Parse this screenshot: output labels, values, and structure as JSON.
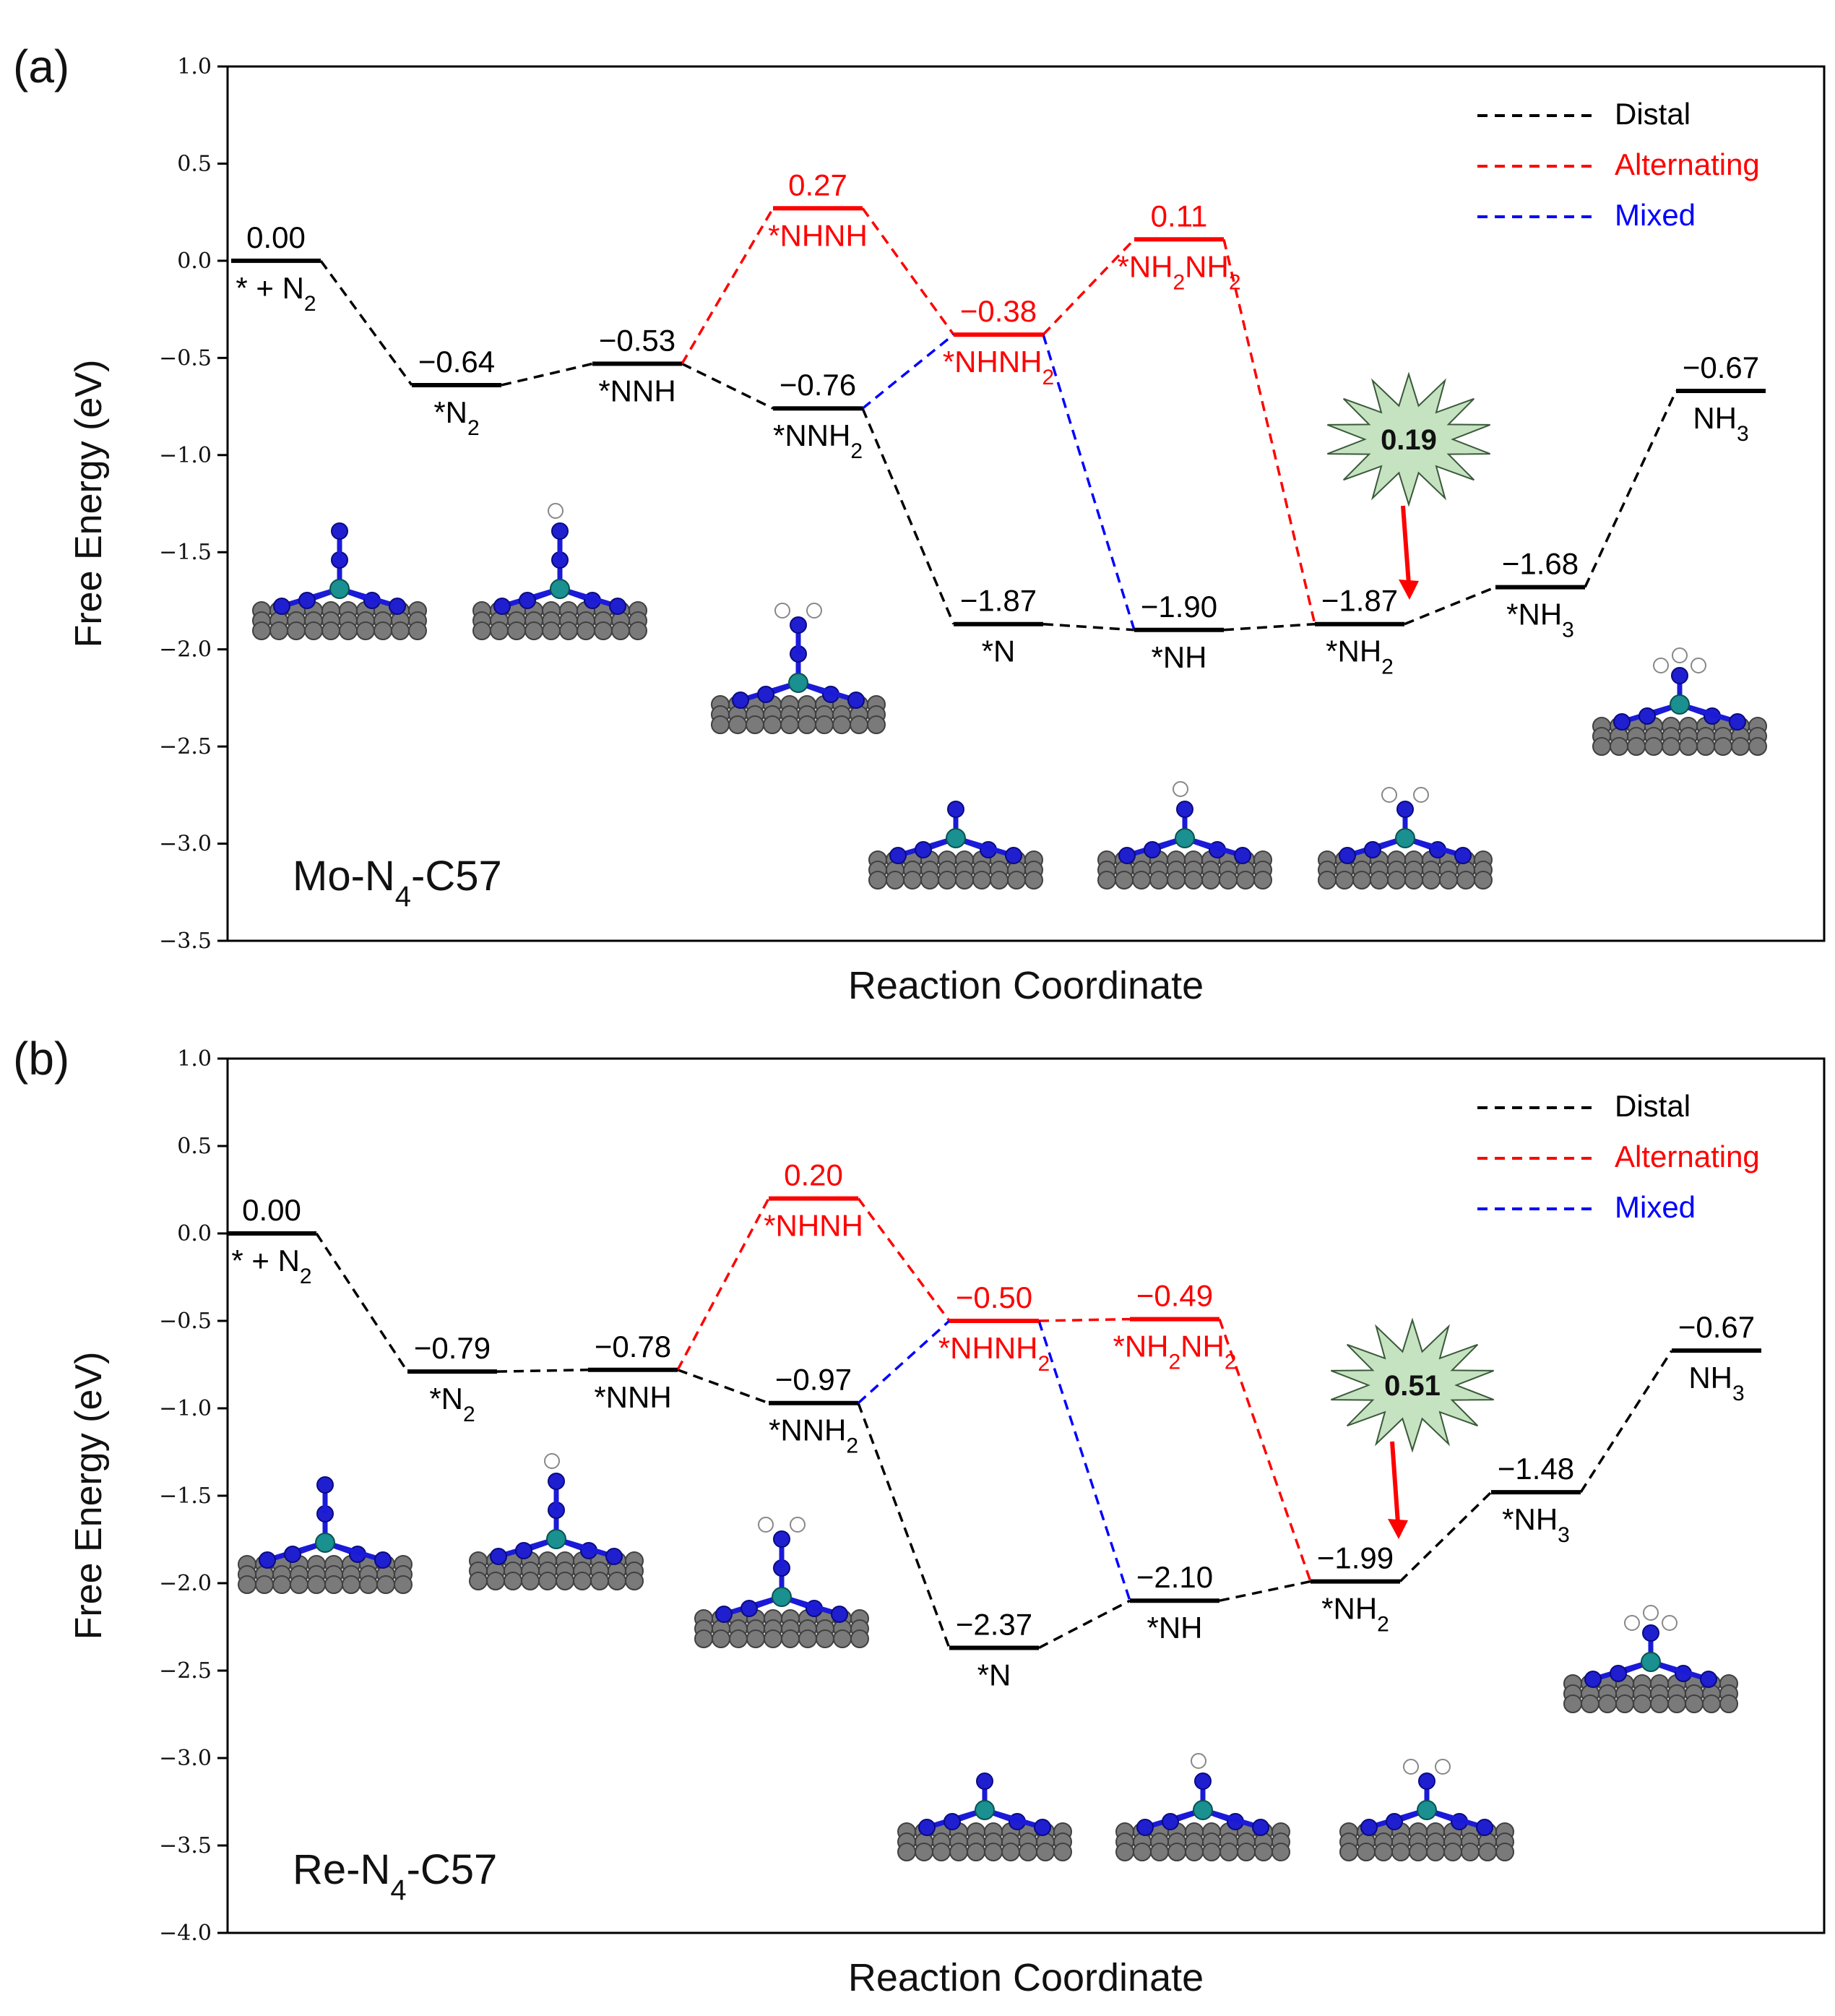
{
  "chart_data": [
    {
      "type": "line",
      "panel_label": "(a)",
      "system_label": {
        "main": "Mo-N",
        "sub": "4",
        "rest": "-C57"
      },
      "title": "",
      "xlabel": "Reaction Coordinate",
      "ylabel": "Free Energy (eV)",
      "ylim": [
        -3.5,
        1.0
      ],
      "yticks": [
        "1.0",
        "0.5",
        "0.0",
        "-0.5",
        "-1.0",
        "-1.5",
        "-2.0",
        "-2.5",
        "-3.0",
        "-3.5"
      ],
      "legend": [
        {
          "name": "Distal",
          "color": "#000000"
        },
        {
          "name": "Alternating",
          "color": "#ff0000"
        },
        {
          "name": "Mixed",
          "color": "#0000ff"
        }
      ],
      "levels": [
        {
          "id": "s0",
          "pos": 0,
          "value": 0.0,
          "value_label": "0.00",
          "state": "* + N",
          "state_sub": "2",
          "color": "#000000"
        },
        {
          "id": "s1",
          "pos": 1,
          "value": -0.64,
          "value_label": "−0.64",
          "state": "*N",
          "state_sub": "2",
          "color": "#000000"
        },
        {
          "id": "s2",
          "pos": 2,
          "value": -0.53,
          "value_label": "−0.53",
          "state": "*NNH",
          "state_sub": "",
          "color": "#000000"
        },
        {
          "id": "s3d",
          "pos": 3,
          "value": -0.76,
          "value_label": "−0.76",
          "state": "*NNH",
          "state_sub": "2",
          "color": "#000000"
        },
        {
          "id": "s3a",
          "pos": 3,
          "value": 0.27,
          "value_label": "0.27",
          "state": "*NHNH",
          "state_sub": "",
          "color": "#ff0000"
        },
        {
          "id": "s4d",
          "pos": 4,
          "value": -1.87,
          "value_label": "−1.87",
          "state": "*N",
          "state_sub": "",
          "color": "#000000"
        },
        {
          "id": "s4a",
          "pos": 4,
          "value": -0.38,
          "value_label": "−0.38",
          "state": "*NHNH",
          "state_sub": "2",
          "color": "#ff0000"
        },
        {
          "id": "s5d",
          "pos": 5,
          "value": -1.9,
          "value_label": "−1.90",
          "state": "*NH",
          "state_sub": "",
          "color": "#000000"
        },
        {
          "id": "s5a",
          "pos": 5,
          "value": 0.11,
          "value_label": "0.11",
          "state": "*NH2NH2",
          "state_sub": "",
          "color": "#ff0000"
        },
        {
          "id": "s6",
          "pos": 6,
          "value": -1.87,
          "value_label": "−1.87",
          "state": "*NH",
          "state_sub": "2",
          "color": "#000000"
        },
        {
          "id": "s7",
          "pos": 7,
          "value": -1.68,
          "value_label": "−1.68",
          "state": "*NH",
          "state_sub": "3",
          "color": "#000000"
        },
        {
          "id": "s8",
          "pos": 8,
          "value": -0.67,
          "value_label": "−0.67",
          "state": "NH",
          "state_sub": "3",
          "color": "#000000"
        }
      ],
      "connections": [
        {
          "from": "s0",
          "to": "s1",
          "path": "Distal"
        },
        {
          "from": "s1",
          "to": "s2",
          "path": "Distal"
        },
        {
          "from": "s2",
          "to": "s3d",
          "path": "Distal"
        },
        {
          "from": "s3d",
          "to": "s4d",
          "path": "Distal"
        },
        {
          "from": "s4d",
          "to": "s5d",
          "path": "Distal"
        },
        {
          "from": "s5d",
          "to": "s6",
          "path": "Distal"
        },
        {
          "from": "s6",
          "to": "s7",
          "path": "Distal"
        },
        {
          "from": "s7",
          "to": "s8",
          "path": "Distal"
        },
        {
          "from": "s2",
          "to": "s3a",
          "path": "Alternating"
        },
        {
          "from": "s3a",
          "to": "s4a",
          "path": "Alternating"
        },
        {
          "from": "s4a",
          "to": "s5a",
          "path": "Alternating"
        },
        {
          "from": "s5a",
          "to": "s6",
          "path": "Alternating"
        },
        {
          "from": "s3d",
          "to": "s4a",
          "path": "Mixed"
        },
        {
          "from": "s4a",
          "to": "s5d",
          "path": "Mixed"
        }
      ],
      "limiting_step": {
        "value_label": "0.19",
        "between": [
          "s6",
          "s7"
        ]
      }
    },
    {
      "type": "line",
      "panel_label": "(b)",
      "system_label": {
        "main": "Re-N",
        "sub": "4",
        "rest": "-C57"
      },
      "title": "",
      "xlabel": "Reaction Coordinate",
      "ylabel": "Free Energy (eV)",
      "ylim": [
        -4.0,
        1.0
      ],
      "yticks": [
        "1.0",
        "0.5",
        "0.0",
        "-0.5",
        "-1.0",
        "-1.5",
        "-2.0",
        "-2.5",
        "-3.0",
        "-3.5",
        "-4.0"
      ],
      "legend": [
        {
          "name": "Distal",
          "color": "#000000"
        },
        {
          "name": "Alternating",
          "color": "#ff0000"
        },
        {
          "name": "Mixed",
          "color": "#0000ff"
        }
      ],
      "levels": [
        {
          "id": "s0",
          "pos": 0,
          "value": 0.0,
          "value_label": "0.00",
          "state": "* + N",
          "state_sub": "2",
          "color": "#000000"
        },
        {
          "id": "s1",
          "pos": 1,
          "value": -0.79,
          "value_label": "−0.79",
          "state": "*N",
          "state_sub": "2",
          "color": "#000000"
        },
        {
          "id": "s2",
          "pos": 2,
          "value": -0.78,
          "value_label": "−0.78",
          "state": "*NNH",
          "state_sub": "",
          "color": "#000000"
        },
        {
          "id": "s3d",
          "pos": 3,
          "value": -0.97,
          "value_label": "−0.97",
          "state": "*NNH",
          "state_sub": "2",
          "color": "#000000"
        },
        {
          "id": "s3a",
          "pos": 3,
          "value": 0.2,
          "value_label": "0.20",
          "state": "*NHNH",
          "state_sub": "",
          "color": "#ff0000"
        },
        {
          "id": "s4d",
          "pos": 4,
          "value": -2.37,
          "value_label": "−2.37",
          "state": "*N",
          "state_sub": "",
          "color": "#000000"
        },
        {
          "id": "s4a",
          "pos": 4,
          "value": -0.5,
          "value_label": "−0.50",
          "state": "*NHNH",
          "state_sub": "2",
          "color": "#ff0000"
        },
        {
          "id": "s5d",
          "pos": 5,
          "value": -2.1,
          "value_label": "−2.10",
          "state": "*NH",
          "state_sub": "",
          "color": "#000000"
        },
        {
          "id": "s5a",
          "pos": 5,
          "value": -0.49,
          "value_label": "−0.49",
          "state": "*NH2NH2",
          "state_sub": "",
          "color": "#ff0000"
        },
        {
          "id": "s6",
          "pos": 6,
          "value": -1.99,
          "value_label": "−1.99",
          "state": "*NH",
          "state_sub": "2",
          "color": "#000000"
        },
        {
          "id": "s7",
          "pos": 7,
          "value": -1.48,
          "value_label": "−1.48",
          "state": "*NH",
          "state_sub": "3",
          "color": "#000000"
        },
        {
          "id": "s8",
          "pos": 8,
          "value": -0.67,
          "value_label": "−0.67",
          "state": "NH",
          "state_sub": "3",
          "color": "#000000"
        }
      ],
      "connections": [
        {
          "from": "s0",
          "to": "s1",
          "path": "Distal"
        },
        {
          "from": "s1",
          "to": "s2",
          "path": "Distal"
        },
        {
          "from": "s2",
          "to": "s3d",
          "path": "Distal"
        },
        {
          "from": "s3d",
          "to": "s4d",
          "path": "Distal"
        },
        {
          "from": "s4d",
          "to": "s5d",
          "path": "Distal"
        },
        {
          "from": "s5d",
          "to": "s6",
          "path": "Distal"
        },
        {
          "from": "s6",
          "to": "s7",
          "path": "Distal"
        },
        {
          "from": "s7",
          "to": "s8",
          "path": "Distal"
        },
        {
          "from": "s2",
          "to": "s3a",
          "path": "Alternating"
        },
        {
          "from": "s3a",
          "to": "s4a",
          "path": "Alternating"
        },
        {
          "from": "s4a",
          "to": "s5a",
          "path": "Alternating"
        },
        {
          "from": "s5a",
          "to": "s6",
          "path": "Alternating"
        },
        {
          "from": "s3d",
          "to": "s4a",
          "path": "Mixed"
        },
        {
          "from": "s4a",
          "to": "s5d",
          "path": "Mixed"
        }
      ],
      "limiting_step": {
        "value_label": "0.51",
        "between": [
          "s6",
          "s7"
        ]
      }
    }
  ]
}
